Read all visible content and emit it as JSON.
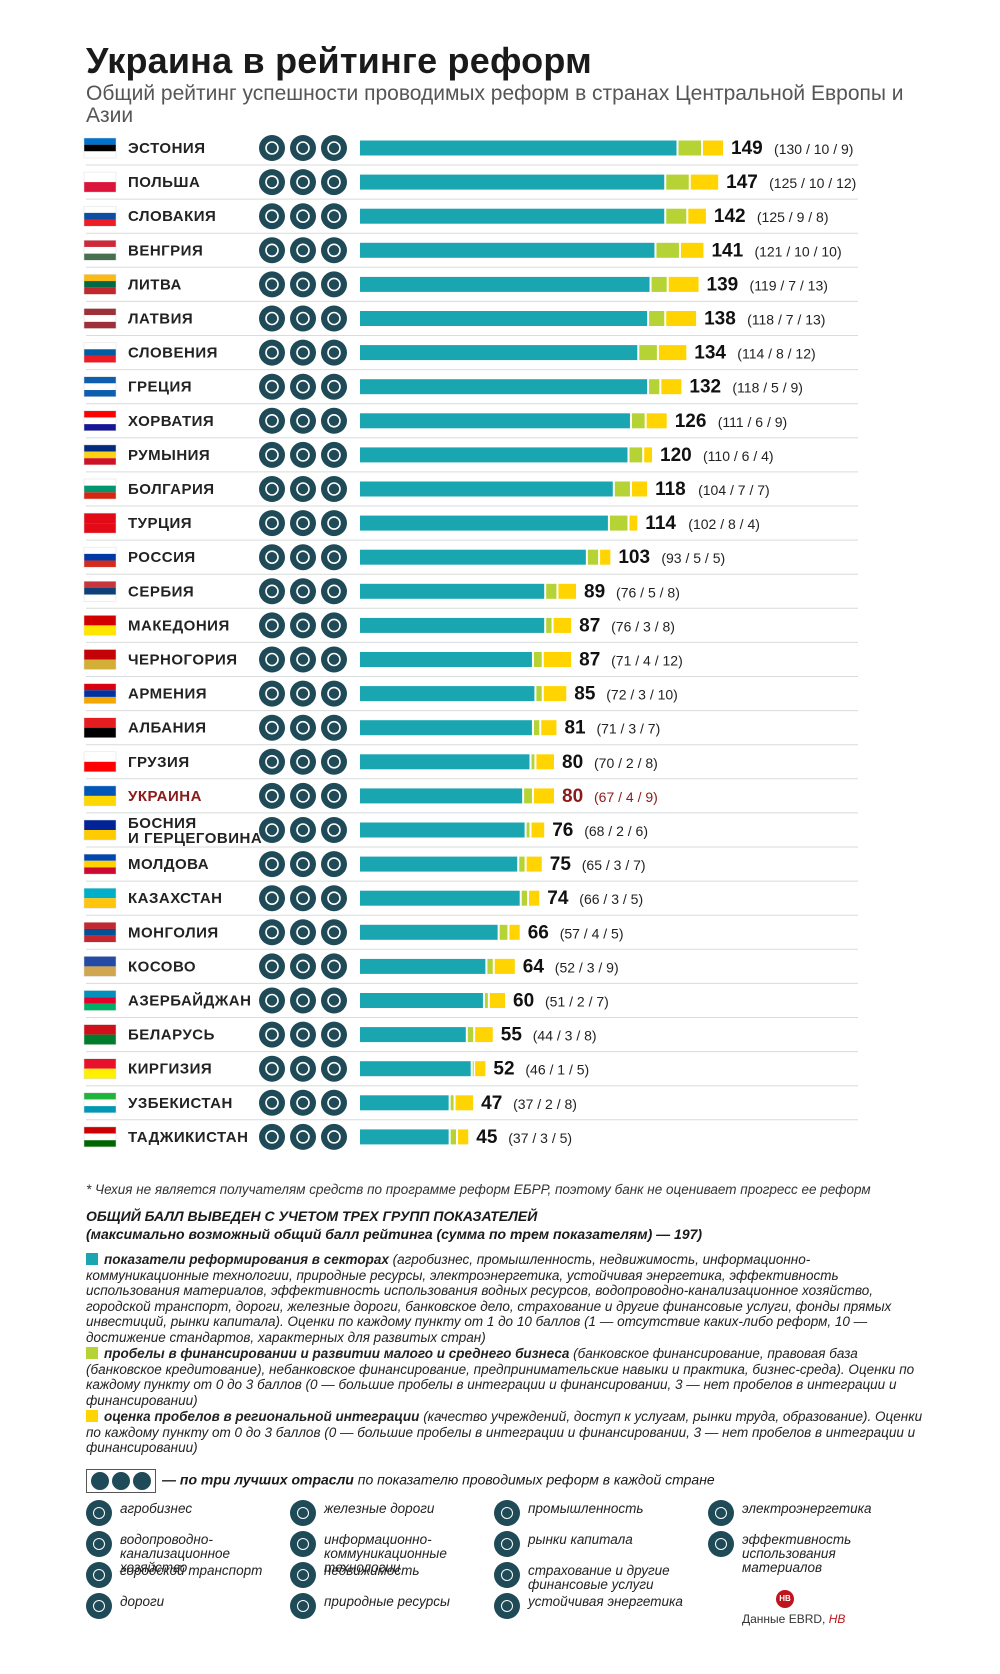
{
  "title": "Украина в рейтинге реформ",
  "subtitle": "Общий рейтинг успешности проводимых реформ в странах Центральной Европы и Азии",
  "colors": {
    "sector": "#1aa6b0",
    "finance": "#b5d334",
    "integration": "#ffd400",
    "icon_bg": "#1f4a57",
    "highlight": "#8b1a1a"
  },
  "chart_data": {
    "type": "bar",
    "stacked": true,
    "orientation": "horizontal",
    "categories": [
      "ЭСТОНИЯ",
      "ПОЛЬША",
      "СЛОВАКИЯ",
      "ВЕНГРИЯ",
      "ЛИТВА",
      "ЛАТВИЯ",
      "СЛОВЕНИЯ",
      "ГРЕЦИЯ",
      "ХОРВАТИЯ",
      "РУМЫНИЯ",
      "БОЛГАРИЯ",
      "ТУРЦИЯ",
      "РОССИЯ",
      "СЕРБИЯ",
      "МАКЕДОНИЯ",
      "ЧЕРНОГОРИЯ",
      "АРМЕНИЯ",
      "АЛБАНИЯ",
      "ГРУЗИЯ",
      "УКРАИНА",
      "БОСНИЯ И ГЕРЦЕГОВИНА",
      "МОЛДОВА",
      "КАЗАХСТАН",
      "МОНГОЛИЯ",
      "КОСОВО",
      "АЗЕРБАЙДЖАН",
      "БЕЛАРУСЬ",
      "КИРГИЗИЯ",
      "УЗБЕКИСТАН",
      "ТАДЖИКИСТАН"
    ],
    "totals": [
      149,
      147,
      142,
      141,
      139,
      138,
      134,
      132,
      126,
      120,
      118,
      114,
      103,
      89,
      87,
      87,
      85,
      81,
      80,
      80,
      76,
      75,
      74,
      66,
      64,
      60,
      55,
      52,
      47,
      45
    ],
    "series": [
      {
        "values": [
          130,
          125,
          125,
          121,
          119,
          118,
          114,
          118,
          111,
          110,
          104,
          102,
          93,
          76,
          76,
          71,
          72,
          71,
          70,
          67,
          68,
          65,
          66,
          57,
          52,
          51,
          44,
          46,
          37,
          37
        ]
      },
      {
        "values": [
          10,
          10,
          9,
          10,
          7,
          7,
          8,
          5,
          6,
          6,
          7,
          8,
          5,
          5,
          3,
          4,
          3,
          3,
          2,
          4,
          2,
          3,
          3,
          4,
          3,
          2,
          3,
          1,
          2,
          3
        ]
      },
      {
        "values": [
          9,
          12,
          8,
          10,
          13,
          13,
          12,
          9,
          9,
          4,
          7,
          4,
          5,
          8,
          8,
          12,
          10,
          7,
          8,
          9,
          6,
          7,
          5,
          5,
          9,
          7,
          8,
          5,
          8,
          5
        ]
      }
    ],
    "highlight": "УКРАИНА",
    "max_total": 197
  },
  "rows_text": [
    {
      "country": "ЭСТОНИЯ",
      "total": "149",
      "parts": "(130 / 10 / 9)"
    },
    {
      "country": "ПОЛЬША",
      "total": "147",
      "parts": "(125 / 10 / 12)"
    },
    {
      "country": "СЛОВАКИЯ",
      "total": "142",
      "parts": "(125 / 9 / 8)"
    },
    {
      "country": "ВЕНГРИЯ",
      "total": "141",
      "parts": "(121 / 10 / 10)"
    },
    {
      "country": "ЛИТВА",
      "total": "139",
      "parts": "(119 / 7 / 13)"
    },
    {
      "country": "ЛАТВИЯ",
      "total": "138",
      "parts": "(118 / 7 / 13)"
    },
    {
      "country": "СЛОВЕНИЯ",
      "total": "134",
      "parts": "(114 / 8 / 12)"
    },
    {
      "country": "ГРЕЦИЯ",
      "total": "132",
      "parts": "(118 / 5 / 9)"
    },
    {
      "country": "ХОРВАТИЯ",
      "total": "126",
      "parts": "(111 / 6 / 9)"
    },
    {
      "country": "РУМЫНИЯ",
      "total": "120",
      "parts": "(110 / 6 / 4)"
    },
    {
      "country": "БОЛГАРИЯ",
      "total": "118",
      "parts": "(104 / 7 / 7)"
    },
    {
      "country": "ТУРЦИЯ",
      "total": "114",
      "parts": "(102 / 8 / 4)"
    },
    {
      "country": "РОССИЯ",
      "total": "103",
      "parts": "(93 / 5 / 5)"
    },
    {
      "country": "СЕРБИЯ",
      "total": "89",
      "parts": "(76 / 5 / 8)"
    },
    {
      "country": "МАКЕДОНИЯ",
      "total": "87",
      "parts": "(76 / 3 / 8)"
    },
    {
      "country": "ЧЕРНОГОРИЯ",
      "total": "87",
      "parts": "(71 / 4 / 12)"
    },
    {
      "country": "АРМЕНИЯ",
      "total": "85",
      "parts": "(72 / 3 / 10)"
    },
    {
      "country": "АЛБАНИЯ",
      "total": "81",
      "parts": "(71 / 3 / 7)"
    },
    {
      "country": "ГРУЗИЯ",
      "total": "80",
      "parts": "(70 / 2 / 8)"
    },
    {
      "country": "УКРАИНА",
      "total": "80",
      "parts": "(67 / 4 / 9)"
    },
    {
      "country": "БОСНИЯ И ГЕРЦЕГОВИНА",
      "total": "76",
      "parts": "(68 / 2 / 6)"
    },
    {
      "country": "МОЛДОВА",
      "total": "75",
      "parts": "(65 / 3 / 7)"
    },
    {
      "country": "КАЗАХСТАН",
      "total": "74",
      "parts": "(66 / 3 / 5)"
    },
    {
      "country": "МОНГОЛИЯ",
      "total": "66",
      "parts": "(57 / 4 / 5)"
    },
    {
      "country": "КОСОВО",
      "total": "64",
      "parts": "(52 / 3 / 9)"
    },
    {
      "country": "АЗЕРБАЙДЖАН",
      "total": "60",
      "parts": "(51 / 2 / 7)"
    },
    {
      "country": "БЕЛАРУСЬ",
      "total": "55",
      "parts": "(44 / 3 / 8)"
    },
    {
      "country": "КИРГИЗИЯ",
      "total": "52",
      "parts": "(46 / 1 / 5)"
    },
    {
      "country": "УЗБЕКИСТАН",
      "total": "47",
      "parts": "(37 / 2 / 8)"
    },
    {
      "country": "ТАДЖИКИСТАН",
      "total": "45",
      "parts": "(37 / 3 / 5)"
    }
  ],
  "footnote": "* Чехия не является получателям средств по программе реформ ЕБРР, поэтому банк не оценивает прогресс ее реформ",
  "legend": {
    "heading": "ОБЩИЙ БАЛЛ ВЫВЕДЕН С УЧЕТОМ ТРЕХ ГРУПП ПОКАЗАТЕЛЕЙ",
    "subheading": "(максимально возможный общий балл рейтинга (сумма по трем показателям) — 197)",
    "items": [
      {
        "title": "показатели реформирования в секторах",
        "text": " (агробизнес, промышленность, недвижимость, информационно-коммуникационные технологии, природные ресурсы, электроэнергетика, устойчивая энергетика, эффективность использования материалов, эффективность использования водных ресурсов, водопроводно-канализационное хозяйство, городской транспорт, дороги, железные дороги, банковское дело, страхование и другие финансовые услуги, фонды прямых инвестиций, рынки капитала). Оценки по каждому пункту от 1 до 10 баллов (1 — отсутствие каких-либо реформ, 10 — достижение стандартов, характерных для развитых стран)"
      },
      {
        "title": "пробелы в финансировании и развитии малого и среднего бизнеса",
        "text": " (банковское финансирование, правовая база (банковское кредитование), небанковское финансирование, предпринимательские навыки и практика, бизнес-среда). Оценки по каждому пункту от 0 до 3 баллов (0 — большие пробелы в интеграции и финансировании, 3 — нет пробелов в интеграции и финансировании)"
      },
      {
        "title": "оценка пробелов в региональной интеграции",
        "text": " (качество учреждений, доступ к услугам, рынки труда, образование). Оценки по каждому пункту от 0 до 3 баллов (0 — большие пробелы в интеграции и финансировании, 3 — нет пробелов в интеграции и финансировании)"
      }
    ],
    "best_title": "— по три лучших отрасли",
    "best_text": " по показателю проводимых реформ в каждой стране"
  },
  "icon_key": [
    "агробизнес",
    "железные дороги",
    "промышленность",
    "электроэнергетика",
    "водопроводно-канализационное хозяйство",
    "информационно-коммуникационные технологии",
    "рынки капитала",
    "эффективность использования материалов",
    "городской транспорт",
    "недвижимость",
    "страхование и другие финансовые услуги",
    "дороги",
    "природные ресурсы",
    "устойчивая энергетика"
  ],
  "source": "Данные EBRD,",
  "source_brand": "НВ",
  "logo_text": "НВ"
}
